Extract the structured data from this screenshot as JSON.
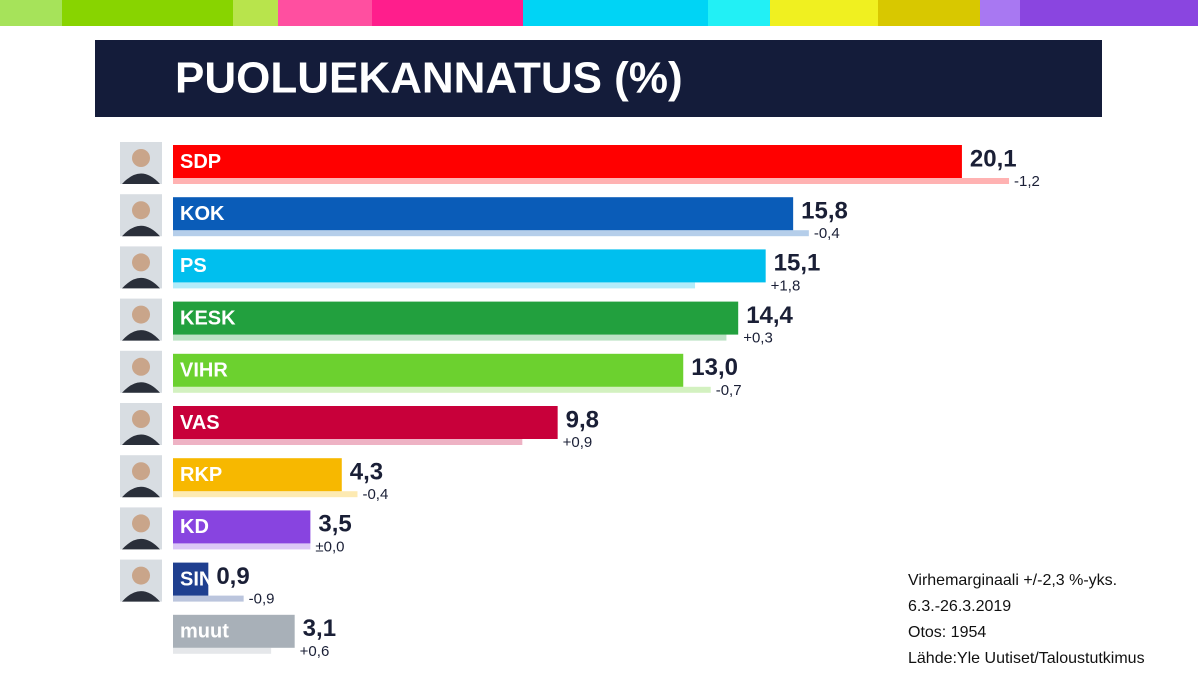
{
  "chart_data": {
    "type": "bar",
    "title": "PUOLUEKANNATUS (%)",
    "categories": [
      "SDP",
      "KOK",
      "PS",
      "KESK",
      "VIHR",
      "VAS",
      "RKP",
      "KD",
      "SIN",
      "muut"
    ],
    "values": [
      20.1,
      15.8,
      15.1,
      14.4,
      13.0,
      9.8,
      4.3,
      3.5,
      0.9,
      3.1
    ],
    "value_labels": [
      "20,1",
      "15,8",
      "15,1",
      "14,4",
      "13,0",
      "9,8",
      "4,3",
      "3,5",
      "0,9",
      "3,1"
    ],
    "changes": [
      -1.2,
      -0.4,
      1.8,
      0.3,
      -0.7,
      0.9,
      -0.4,
      0.0,
      -0.9,
      0.6
    ],
    "change_labels": [
      "-1,2",
      "-0,4",
      "+1,8",
      "+0,3",
      "-0,7",
      "+0,9",
      "-0,4",
      "±0,0",
      "-0,9",
      "+0,6"
    ],
    "colors": [
      "#ff0000",
      "#0a5cb8",
      "#00bfee",
      "#22a03e",
      "#6cd12f",
      "#c8003a",
      "#f7b800",
      "#8844e0",
      "#1f3f8f",
      "#a8b0b8"
    ],
    "notes": [
      "Virhemarginaali +/-2,3 %-yks.",
      "6.3.-26.3.2019",
      "Otos: 1954",
      "Lähde:Yle Uutiset/Taloustutkimus"
    ]
  }
}
